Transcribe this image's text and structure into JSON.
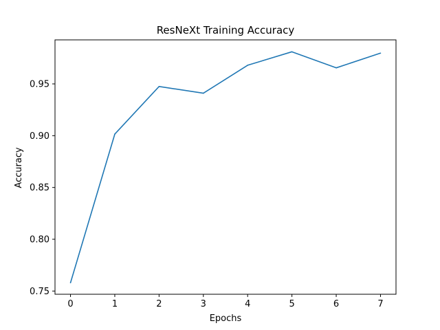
{
  "chart_data": {
    "type": "line",
    "title": "ResNeXt Training Accuracy",
    "xlabel": "Epochs",
    "ylabel": "Accuracy",
    "x": [
      0,
      1,
      2,
      3,
      4,
      5,
      6,
      7
    ],
    "series": [
      {
        "values": [
          0.758,
          0.9015,
          0.9475,
          0.941,
          0.968,
          0.981,
          0.9655,
          0.9797
        ],
        "color": "#1f77b4"
      }
    ],
    "xlim": [
      -0.35,
      7.35
    ],
    "ylim": [
      0.7469,
      0.9925
    ],
    "xticks": [
      0,
      1,
      2,
      3,
      4,
      5,
      6,
      7
    ],
    "yticks": [
      0.75,
      0.8,
      0.85,
      0.9,
      0.95
    ],
    "xtick_labels": [
      "0",
      "1",
      "2",
      "3",
      "4",
      "5",
      "6",
      "7"
    ],
    "ytick_labels": [
      "0.75",
      "0.80",
      "0.85",
      "0.90",
      "0.95"
    ],
    "grid": false,
    "legend": "none"
  }
}
